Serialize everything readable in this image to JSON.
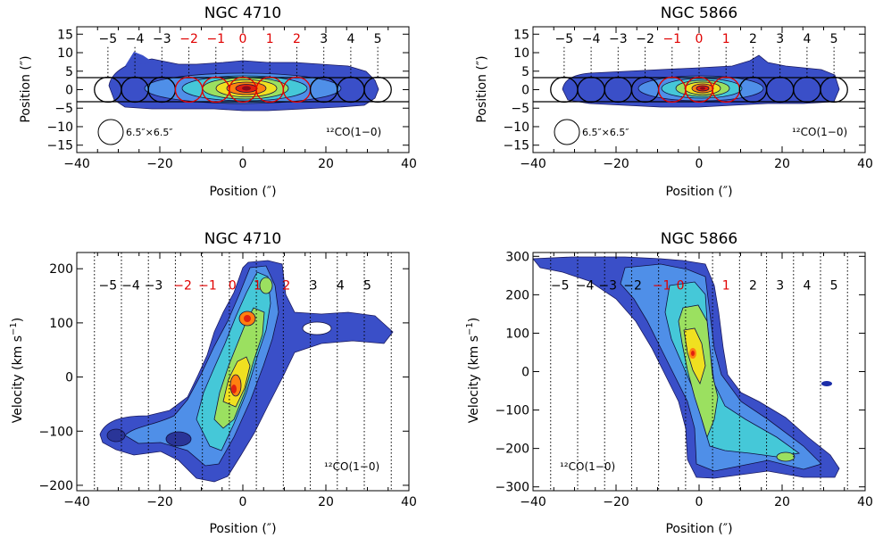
{
  "figure_colors": {
    "beam_black": "#000000",
    "beam_red": "#e00000",
    "cmap": [
      "#1a2ca8",
      "#3a5be0",
      "#4f9de8",
      "#35d0c0",
      "#9be060",
      "#f0e020",
      "#ff8010",
      "#e02010",
      "#8a0a1a"
    ]
  },
  "chart_data": [
    {
      "id": "moment0_4710",
      "type": "heatmap",
      "title": "NGC 4710",
      "xlabel": "Position (″)",
      "ylabel": "Position (″)",
      "xlim": [
        -40,
        40
      ],
      "ylim": [
        -17,
        17
      ],
      "xticks": [
        -40,
        -20,
        0,
        20,
        40
      ],
      "yticks": [
        -15,
        -10,
        -5,
        0,
        5,
        10,
        15
      ],
      "beam_numbers": [
        {
          "label": "−5",
          "x": -32.5,
          "color": "black"
        },
        {
          "label": "−4",
          "x": -26,
          "color": "black"
        },
        {
          "label": "−3",
          "x": -19.5,
          "color": "black"
        },
        {
          "label": "−2",
          "x": -13,
          "color": "red"
        },
        {
          "label": "−1",
          "x": -6.5,
          "color": "red"
        },
        {
          "label": "0",
          "x": 0,
          "color": "red"
        },
        {
          "label": "1",
          "x": 6.5,
          "color": "red"
        },
        {
          "label": "2",
          "x": 13,
          "color": "red"
        },
        {
          "label": "3",
          "x": 19.5,
          "color": "black"
        },
        {
          "label": "4",
          "x": 26,
          "color": "black"
        },
        {
          "label": "5",
          "x": 32.5,
          "color": "black"
        }
      ],
      "slit_y": [
        -3.25,
        3.25
      ],
      "beam_label": "6.5″×6.5″",
      "line_label": "¹²CO(1−0)",
      "emission": {
        "x_extent": [
          -33,
          33
        ],
        "y_half": 6,
        "peak_x": 0
      }
    },
    {
      "id": "moment0_5866",
      "type": "heatmap",
      "title": "NGC 5866",
      "xlabel": "Position (″)",
      "ylabel": "Position (″)",
      "xlim": [
        -40,
        40
      ],
      "ylim": [
        -17,
        17
      ],
      "xticks": [
        -40,
        -20,
        0,
        20,
        40
      ],
      "yticks": [
        -15,
        -10,
        -5,
        0,
        5,
        10,
        15
      ],
      "beam_numbers": [
        {
          "label": "−5",
          "x": -32.5,
          "color": "black"
        },
        {
          "label": "−4",
          "x": -26,
          "color": "black"
        },
        {
          "label": "−3",
          "x": -19.5,
          "color": "black"
        },
        {
          "label": "−2",
          "x": -13,
          "color": "black"
        },
        {
          "label": "−1",
          "x": -6.5,
          "color": "red"
        },
        {
          "label": "0",
          "x": 0,
          "color": "red"
        },
        {
          "label": "1",
          "x": 6.5,
          "color": "red"
        },
        {
          "label": "2",
          "x": 13,
          "color": "black"
        },
        {
          "label": "3",
          "x": 19.5,
          "color": "black"
        },
        {
          "label": "4",
          "x": 26,
          "color": "black"
        },
        {
          "label": "5",
          "x": 32.5,
          "color": "black"
        }
      ],
      "slit_y": [
        -3.25,
        3.25
      ],
      "beam_label": "6.5″×6.5″",
      "line_label": "¹²CO(1−0)",
      "emission": {
        "x_extent": [
          -33,
          33
        ],
        "y_half": 4,
        "peak_x": 0
      }
    },
    {
      "id": "pv_4710",
      "type": "heatmap",
      "title": "NGC 4710",
      "xlabel": "Position (″)",
      "ylabel": "Velocity (km s⁻¹)",
      "ylabel_parts": {
        "main": "Velocity (km s",
        "sup": "−1",
        "close": ")"
      },
      "xlim": [
        -40,
        40
      ],
      "ylim": [
        -210,
        230
      ],
      "xticks": [
        -40,
        -20,
        0,
        20,
        40
      ],
      "yticks": [
        -200,
        -100,
        0,
        100,
        200
      ],
      "separators": [
        -35.75,
        -29.25,
        -22.75,
        -16.25,
        -9.75,
        -3.25,
        3.25,
        9.75,
        16.25,
        22.75,
        29.25,
        35.75
      ],
      "beam_numbers": [
        {
          "label": "−5",
          "x": -32.5,
          "color": "black"
        },
        {
          "label": "−4",
          "x": -27,
          "color": "black"
        },
        {
          "label": "−3",
          "x": -21.5,
          "color": "black"
        },
        {
          "label": "−2",
          "x": -14.5,
          "color": "red"
        },
        {
          "label": "−1",
          "x": -8.5,
          "color": "red"
        },
        {
          "label": "0",
          "x": -2.5,
          "color": "red"
        },
        {
          "label": "1",
          "x": 3.5,
          "color": "red"
        },
        {
          "label": "2",
          "x": 10.5,
          "color": "red"
        },
        {
          "label": "3",
          "x": 17,
          "color": "black"
        },
        {
          "label": "4",
          "x": 23.5,
          "color": "black"
        },
        {
          "label": "5",
          "x": 30,
          "color": "black"
        }
      ],
      "beam_numbers_v": 170,
      "line_label": "¹²CO(1−0)"
    },
    {
      "id": "pv_5866",
      "type": "heatmap",
      "title": "NGC 5866",
      "xlabel": "Position (″)",
      "ylabel": "Velocity (km s⁻¹)",
      "ylabel_parts": {
        "main": "Velocity (km s",
        "sup": "−1",
        "close": ")"
      },
      "xlim": [
        -40,
        40
      ],
      "ylim": [
        -310,
        310
      ],
      "xticks": [
        -40,
        -20,
        0,
        20,
        40
      ],
      "yticks": [
        -300,
        -200,
        -100,
        0,
        100,
        200,
        300
      ],
      "separators": [
        -35.75,
        -29.25,
        -22.75,
        -16.25,
        -9.75,
        -3.25,
        3.25,
        9.75,
        16.25,
        22.75,
        29.25,
        35.75
      ],
      "beam_numbers": [
        {
          "label": "−5",
          "x": -33.5,
          "color": "black"
        },
        {
          "label": "−4",
          "x": -27.5,
          "color": "black"
        },
        {
          "label": "−3",
          "x": -22,
          "color": "black"
        },
        {
          "label": "−2",
          "x": -16,
          "color": "black"
        },
        {
          "label": "−1",
          "x": -9,
          "color": "red"
        },
        {
          "label": "0",
          "x": -4.5,
          "color": "red"
        },
        {
          "label": "1",
          "x": 6.5,
          "color": "red"
        },
        {
          "label": "2",
          "x": 13,
          "color": "black"
        },
        {
          "label": "3",
          "x": 19.5,
          "color": "black"
        },
        {
          "label": "4",
          "x": 26,
          "color": "black"
        },
        {
          "label": "5",
          "x": 32.5,
          "color": "black"
        }
      ],
      "beam_numbers_v": 225,
      "line_label": "¹²CO(1−0)"
    }
  ]
}
